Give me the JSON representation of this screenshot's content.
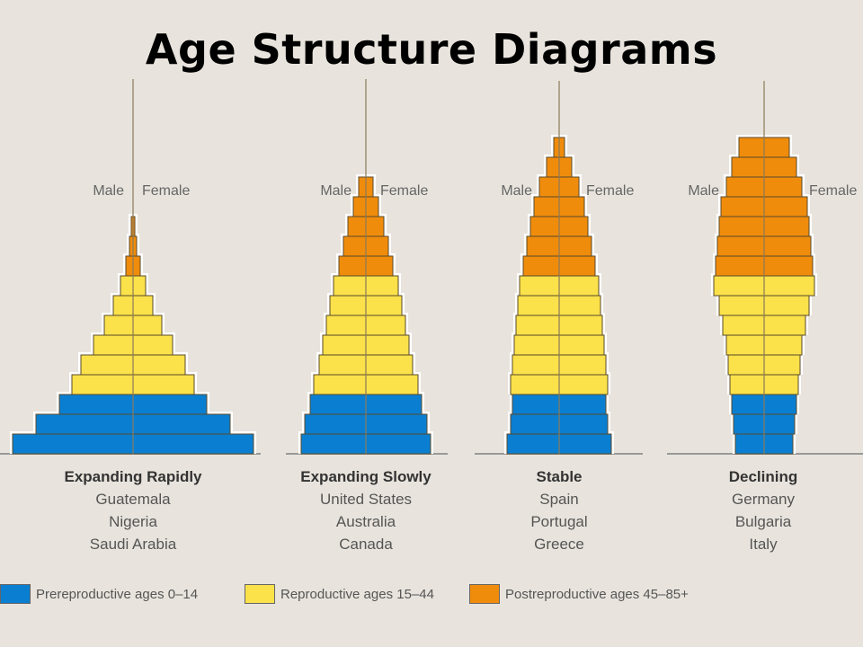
{
  "title": "Age Structure Diagrams",
  "colors": {
    "prereproductive": "#0a7fd1",
    "reproductive": "#fbe14a",
    "postreproductive": "#f08c0c",
    "outline": "#5a4a2a"
  },
  "sex_labels": {
    "male": "Male",
    "female": "Female"
  },
  "pyramids": [
    {
      "heading": "Expanding Rapidly",
      "countries": [
        "Guatemala",
        "Nigeria",
        "Saudi Arabia"
      ],
      "bar_widths": [
        134,
        108,
        82,
        68,
        58,
        44,
        32,
        22,
        14,
        8,
        4,
        2
      ]
    },
    {
      "heading": "Expanding Slowly",
      "countries": [
        "United States",
        "Australia",
        "Canada"
      ],
      "bar_widths": [
        72,
        68,
        62,
        58,
        52,
        48,
        44,
        40,
        36,
        30,
        25,
        20,
        14,
        8
      ]
    },
    {
      "heading": "Stable",
      "countries": [
        "Spain",
        "Portugal",
        "Greece"
      ],
      "bar_widths": [
        58,
        54,
        52,
        54,
        52,
        50,
        48,
        46,
        44,
        40,
        36,
        32,
        28,
        22,
        14,
        6
      ]
    },
    {
      "heading": "Declining",
      "countries": [
        "Germany",
        "Bulgaria",
        "Italy"
      ],
      "bar_widths": [
        32,
        34,
        36,
        38,
        40,
        42,
        46,
        50,
        56,
        54,
        52,
        50,
        48,
        42,
        36,
        28
      ]
    }
  ],
  "legend": [
    {
      "label": "Prereproductive ages 0–14",
      "color_key": "prereproductive"
    },
    {
      "label": "Reproductive ages 15–44",
      "color_key": "reproductive"
    },
    {
      "label": "Postreproductive ages 45–85+",
      "color_key": "postreproductive"
    }
  ]
}
